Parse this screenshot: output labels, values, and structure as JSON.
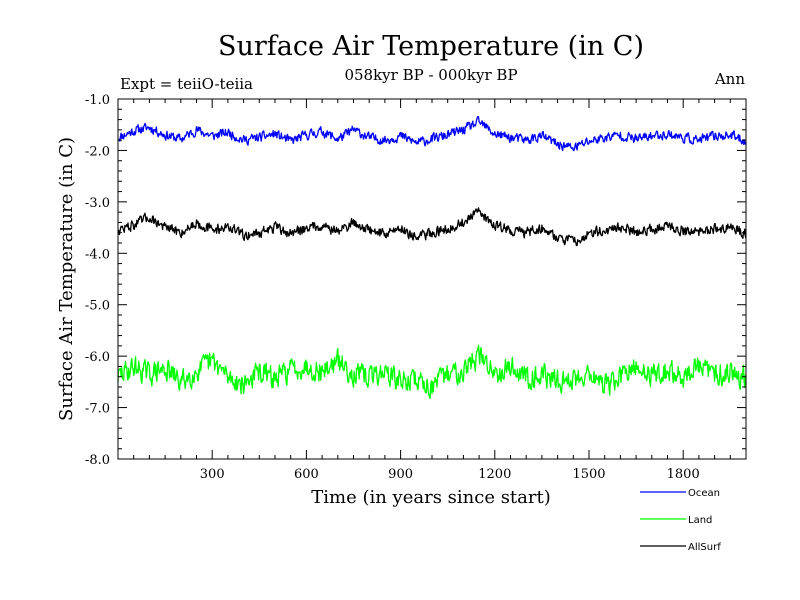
{
  "header": {
    "title": "Surface Air Temperature (in C)",
    "subtitle": "058kyr BP - 000kyr BP",
    "expt_label": "Expt = teiiO-teiia",
    "period_label": "Ann"
  },
  "chart_data": {
    "type": "line",
    "title": "Surface Air Temperature (in C)",
    "xlabel": "Time (in years since start)",
    "ylabel": "Surface Air Temperature (in C)",
    "xlim": [
      0,
      2000
    ],
    "ylim": [
      -8.0,
      -1.0
    ],
    "xticks": [
      300,
      600,
      900,
      1200,
      1500,
      1800
    ],
    "yticks": [
      -8.0,
      -7.0,
      -6.0,
      -5.0,
      -4.0,
      -3.0,
      -2.0,
      -1.0
    ],
    "xtick_labels": [
      "300",
      "600",
      "900",
      "1200",
      "1500",
      "1800"
    ],
    "ytick_labels": [
      "-8.0",
      "-7.0",
      "-6.0",
      "-5.0",
      "-4.0",
      "-3.0",
      "-2.0",
      "-1.0"
    ],
    "grid": false,
    "legend_position": "bottom-right, below plot",
    "series": [
      {
        "name": "Ocean",
        "color": "#0000ff",
        "x": [
          0,
          50,
          100,
          150,
          200,
          250,
          300,
          350,
          400,
          450,
          500,
          550,
          600,
          650,
          700,
          750,
          800,
          850,
          900,
          950,
          1000,
          1050,
          1100,
          1150,
          1200,
          1250,
          1300,
          1350,
          1400,
          1450,
          1500,
          1550,
          1600,
          1650,
          1700,
          1750,
          1800,
          1850,
          1900,
          1950,
          2000
        ],
        "y": [
          -1.75,
          -1.62,
          -1.55,
          -1.7,
          -1.78,
          -1.6,
          -1.72,
          -1.65,
          -1.8,
          -1.75,
          -1.68,
          -1.82,
          -1.7,
          -1.63,
          -1.78,
          -1.6,
          -1.75,
          -1.8,
          -1.72,
          -1.85,
          -1.78,
          -1.7,
          -1.6,
          -1.45,
          -1.68,
          -1.75,
          -1.8,
          -1.72,
          -1.88,
          -1.95,
          -1.82,
          -1.75,
          -1.7,
          -1.78,
          -1.72,
          -1.68,
          -1.75,
          -1.8,
          -1.72,
          -1.7,
          -1.82
        ]
      },
      {
        "name": "Land",
        "color": "#00ff00",
        "x": [
          0,
          50,
          100,
          150,
          200,
          250,
          300,
          350,
          400,
          450,
          500,
          550,
          600,
          650,
          700,
          750,
          800,
          850,
          900,
          950,
          1000,
          1050,
          1100,
          1150,
          1200,
          1250,
          1300,
          1350,
          1400,
          1450,
          1500,
          1550,
          1600,
          1650,
          1700,
          1750,
          1800,
          1850,
          1900,
          1950,
          2000
        ],
        "y": [
          -6.4,
          -6.2,
          -6.35,
          -6.25,
          -6.5,
          -6.3,
          -6.1,
          -6.4,
          -6.55,
          -6.3,
          -6.45,
          -6.25,
          -6.2,
          -6.3,
          -6.1,
          -6.35,
          -6.4,
          -6.3,
          -6.5,
          -6.45,
          -6.6,
          -6.35,
          -6.25,
          -6.0,
          -6.3,
          -6.2,
          -6.4,
          -6.35,
          -6.5,
          -6.45,
          -6.3,
          -6.6,
          -6.4,
          -6.25,
          -6.35,
          -6.3,
          -6.4,
          -6.2,
          -6.35,
          -6.3,
          -6.4
        ]
      },
      {
        "name": "AllSurf",
        "color": "#000000",
        "x": [
          0,
          50,
          100,
          150,
          200,
          250,
          300,
          350,
          400,
          450,
          500,
          550,
          600,
          650,
          700,
          750,
          800,
          850,
          900,
          950,
          1000,
          1050,
          1100,
          1150,
          1200,
          1250,
          1300,
          1350,
          1400,
          1450,
          1500,
          1550,
          1600,
          1650,
          1700,
          1750,
          1800,
          1850,
          1900,
          1950,
          2000
        ],
        "y": [
          -3.55,
          -3.45,
          -3.3,
          -3.5,
          -3.6,
          -3.4,
          -3.55,
          -3.48,
          -3.65,
          -3.6,
          -3.5,
          -3.62,
          -3.5,
          -3.45,
          -3.58,
          -3.4,
          -3.55,
          -3.62,
          -3.5,
          -3.7,
          -3.6,
          -3.52,
          -3.4,
          -3.2,
          -3.45,
          -3.55,
          -3.6,
          -3.5,
          -3.7,
          -3.78,
          -3.62,
          -3.55,
          -3.5,
          -3.58,
          -3.52,
          -3.48,
          -3.55,
          -3.6,
          -3.52,
          -3.5,
          -3.62
        ]
      }
    ]
  }
}
